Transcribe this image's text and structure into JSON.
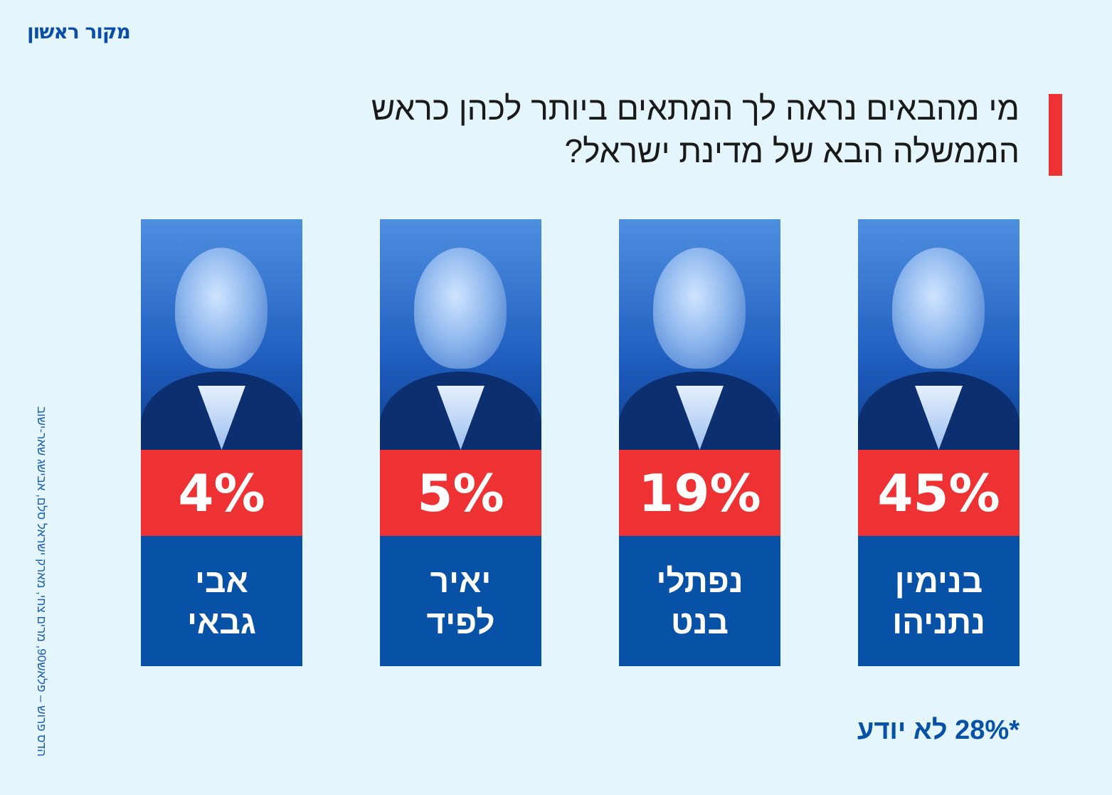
{
  "logo": "מקור ראשון",
  "credit": "הדס פרוש – פלאש90, מרים צחי, מארק ישראל סלם, אבישג שאר-ישוב",
  "chart_data": {
    "type": "bar",
    "title": "מי מהבאים נראה לך המתאים ביותר לכהן כראש הממשלה הבא של מדינת ישראל?",
    "title_lines": [
      "מי מהבאים נראה לך המתאים ביותר לכהן כראש",
      "הממשלה הבא של מדינת ישראל?"
    ],
    "categories": [
      "בנימין נתניהו",
      "נפתלי בנט",
      "יאיר לפיד",
      "אבי גבאי"
    ],
    "name_lines": [
      [
        "בנימין",
        "נתניהו"
      ],
      [
        "נפתלי",
        "בנט"
      ],
      [
        "יאיר",
        "לפיד"
      ],
      [
        "אבי",
        "גבאי"
      ]
    ],
    "values": [
      45,
      19,
      5,
      4
    ],
    "labels": [
      "45%",
      "19%",
      "5%",
      "4%"
    ],
    "unit": "%",
    "footnote": "*28% לא יודע"
  },
  "colors": {
    "accent": "#ee3133",
    "brand": "#0751a6",
    "background": "#e4f5fb"
  }
}
